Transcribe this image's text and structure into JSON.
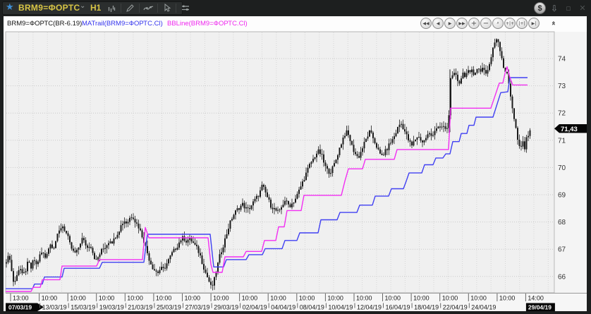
{
  "window": {
    "title": "BRM9=ФОРТС",
    "interval": "H1",
    "controls": [
      {
        "name": "currency-button",
        "glyph": "$"
      },
      {
        "name": "dock-down-button",
        "glyph": "⇩"
      },
      {
        "name": "minimize-button",
        "glyph": "▫"
      },
      {
        "name": "close-button",
        "glyph": "✕"
      }
    ]
  },
  "legend": {
    "main": {
      "label": "BRM9=ФОРТС(BR-6.19)",
      "color": "#141414"
    },
    "matrail": {
      "label": "MATrail(BRM9=ФОРТС.Cl)",
      "color": "#3434ee"
    },
    "bbline": {
      "label": "BBLine(BRM9=ФОРТС.Cl)",
      "color": "#ee26ee"
    }
  },
  "chart_toolbar": {
    "buttons": [
      {
        "name": "scroll-left-fast-button",
        "glyph": "◀◀"
      },
      {
        "name": "scroll-left-button",
        "glyph": "◀"
      },
      {
        "name": "scroll-right-button",
        "glyph": "▶"
      },
      {
        "name": "scroll-right-fast-button",
        "glyph": "▶▶"
      },
      {
        "name": "zoom-in-button",
        "glyph": "+"
      },
      {
        "name": "zoom-out-button",
        "glyph": "−"
      },
      {
        "name": "zoom-select-button",
        "glyph": "⌕"
      },
      {
        "name": "compress-bars-button",
        "glyph": "+|+"
      },
      {
        "name": "expand-bars-button",
        "glyph": "|+|"
      },
      {
        "name": "go-to-end-button",
        "glyph": "▶|"
      }
    ],
    "collapse_glyph": "«"
  },
  "chart_data": {
    "type": "candlestick",
    "symbol": "BRM9=ФОРТС",
    "series_label": "BRM9=ФОРТС(BR-6.19)",
    "interval": "H1",
    "last_price": 71.43,
    "last_price_label": "71,43",
    "y_ticks": [
      74,
      73,
      72,
      71,
      70,
      69,
      68,
      67,
      66
    ],
    "y_axis_range": [
      65.4,
      75.0
    ],
    "candle_color": "#1b1b1b",
    "plot_bg": "#f0f0f0",
    "grid_on": true,
    "x_ticks": [
      {
        "time": "13:00",
        "date": "07/03/19",
        "badge": true
      },
      {
        "time": "10:00",
        "date": "13/03/19"
      },
      {
        "time": "10:00",
        "date": "15/03/19"
      },
      {
        "time": "10:00",
        "date": "19/03/19"
      },
      {
        "time": "10:00",
        "date": "21/03/19"
      },
      {
        "time": "10:00",
        "date": "25/03/19"
      },
      {
        "time": "10:00",
        "date": "27/03/19"
      },
      {
        "time": "10:00",
        "date": "29/03/19"
      },
      {
        "time": "10:00",
        "date": "02/04/19"
      },
      {
        "time": "10:00",
        "date": "04/04/19"
      },
      {
        "time": "10:00",
        "date": "08/04/19"
      },
      {
        "time": "10:00",
        "date": "10/04/19"
      },
      {
        "time": "10:00",
        "date": "12/04/19"
      },
      {
        "time": "10:00",
        "date": "16/04/19"
      },
      {
        "time": "10:00",
        "date": "18/04/19"
      },
      {
        "time": "10:00",
        "date": "22/04/19"
      },
      {
        "time": "10:00",
        "date": "24/04/19"
      },
      {
        "time": "10:00",
        "date": ""
      },
      {
        "time": "14:00",
        "date": "29/04/19",
        "badge": true
      }
    ],
    "close_path": [
      [
        9,
        66.45
      ],
      [
        12,
        66.9
      ],
      [
        16,
        66.3
      ],
      [
        20,
        65.65
      ],
      [
        24,
        66.1
      ],
      [
        28,
        66.35
      ],
      [
        32,
        66.0
      ],
      [
        36,
        66.2
      ],
      [
        40,
        66.55
      ],
      [
        44,
        66.3
      ],
      [
        48,
        66.65
      ],
      [
        52,
        66.4
      ],
      [
        56,
        66.75
      ],
      [
        60,
        66.9
      ],
      [
        64,
        66.7
      ],
      [
        68,
        67.0
      ],
      [
        72,
        67.2
      ],
      [
        76,
        67.05
      ],
      [
        80,
        67.4
      ],
      [
        84,
        67.65
      ],
      [
        88,
        67.9
      ],
      [
        92,
        67.7
      ],
      [
        96,
        67.45
      ],
      [
        100,
        67.1
      ],
      [
        104,
        66.9
      ],
      [
        108,
        66.85
      ],
      [
        112,
        67.1
      ],
      [
        116,
        67.4
      ],
      [
        120,
        67.25
      ],
      [
        124,
        67.05
      ],
      [
        128,
        67.2
      ],
      [
        132,
        66.85
      ],
      [
        136,
        66.55
      ],
      [
        140,
        66.75
      ],
      [
        144,
        66.95
      ],
      [
        148,
        67.05
      ],
      [
        152,
        67.2
      ],
      [
        156,
        67.35
      ],
      [
        160,
        67.25
      ],
      [
        164,
        67.5
      ],
      [
        168,
        67.65
      ],
      [
        172,
        67.9
      ],
      [
        176,
        68.05
      ],
      [
        180,
        67.95
      ],
      [
        184,
        68.15
      ],
      [
        188,
        68.25
      ],
      [
        192,
        68.0
      ],
      [
        196,
        67.85
      ],
      [
        200,
        67.6
      ],
      [
        204,
        67.3
      ],
      [
        208,
        66.95
      ],
      [
        212,
        66.6
      ],
      [
        216,
        66.35
      ],
      [
        220,
        66.2
      ],
      [
        224,
        66.15
      ],
      [
        228,
        66.3
      ],
      [
        232,
        66.25
      ],
      [
        236,
        66.45
      ],
      [
        240,
        66.65
      ],
      [
        244,
        66.85
      ],
      [
        248,
        67.0
      ],
      [
        252,
        67.15
      ],
      [
        256,
        67.35
      ],
      [
        260,
        67.42
      ],
      [
        264,
        67.3
      ],
      [
        268,
        67.38
      ],
      [
        272,
        67.3
      ],
      [
        276,
        67.15
      ],
      [
        280,
        67.0
      ],
      [
        284,
        66.75
      ],
      [
        288,
        66.4
      ],
      [
        292,
        66.1
      ],
      [
        296,
        65.85
      ],
      [
        300,
        65.55
      ],
      [
        304,
        65.9
      ],
      [
        308,
        66.35
      ],
      [
        312,
        66.8
      ],
      [
        316,
        67.1
      ],
      [
        320,
        67.45
      ],
      [
        324,
        67.8
      ],
      [
        328,
        68.1
      ],
      [
        332,
        68.3
      ],
      [
        336,
        68.45
      ],
      [
        340,
        68.55
      ],
      [
        344,
        68.65
      ],
      [
        348,
        68.5
      ],
      [
        352,
        68.45
      ],
      [
        356,
        68.6
      ],
      [
        360,
        68.75
      ],
      [
        364,
        68.9
      ],
      [
        368,
        69.05
      ],
      [
        372,
        69.35
      ],
      [
        376,
        69.1
      ],
      [
        380,
        68.85
      ],
      [
        384,
        68.6
      ],
      [
        388,
        68.5
      ],
      [
        392,
        68.4
      ],
      [
        396,
        68.35
      ],
      [
        400,
        68.6
      ],
      [
        404,
        68.8
      ],
      [
        408,
        68.65
      ],
      [
        412,
        68.6
      ],
      [
        416,
        68.75
      ],
      [
        420,
        68.9
      ],
      [
        424,
        69.15
      ],
      [
        428,
        69.4
      ],
      [
        432,
        69.65
      ],
      [
        436,
        69.9
      ],
      [
        440,
        70.15
      ],
      [
        444,
        70.3
      ],
      [
        448,
        70.5
      ],
      [
        452,
        70.6
      ],
      [
        456,
        70.45
      ],
      [
        460,
        70.1
      ],
      [
        464,
        69.9
      ],
      [
        468,
        69.82
      ],
      [
        472,
        70.0
      ],
      [
        476,
        70.25
      ],
      [
        480,
        70.6
      ],
      [
        484,
        70.9
      ],
      [
        488,
        71.2
      ],
      [
        492,
        71.3
      ],
      [
        496,
        71.05
      ],
      [
        500,
        70.7
      ],
      [
        504,
        70.5
      ],
      [
        508,
        70.35
      ],
      [
        512,
        70.6
      ],
      [
        516,
        70.85
      ],
      [
        520,
        71.1
      ],
      [
        524,
        71.3
      ],
      [
        528,
        71.15
      ],
      [
        532,
        70.9
      ],
      [
        536,
        70.65
      ],
      [
        540,
        70.4
      ],
      [
        544,
        70.5
      ],
      [
        548,
        70.65
      ],
      [
        552,
        70.85
      ],
      [
        556,
        71.0
      ],
      [
        560,
        71.2
      ],
      [
        564,
        71.45
      ],
      [
        568,
        71.65
      ],
      [
        572,
        71.45
      ],
      [
        576,
        71.2
      ],
      [
        580,
        70.95
      ],
      [
        584,
        70.8
      ],
      [
        588,
        71.0
      ],
      [
        592,
        71.15
      ],
      [
        596,
        71.05
      ],
      [
        600,
        70.9
      ],
      [
        604,
        71.1
      ],
      [
        608,
        71.25
      ],
      [
        612,
        71.15
      ],
      [
        616,
        71.35
      ],
      [
        620,
        71.5
      ],
      [
        624,
        71.4
      ],
      [
        628,
        71.55
      ],
      [
        632,
        71.35
      ],
      [
        636,
        71.6
      ],
      [
        639,
        73.35
      ],
      [
        642,
        73.3
      ],
      [
        645,
        73.45
      ],
      [
        648,
        73.25
      ],
      [
        651,
        73.1
      ],
      [
        654,
        73.3
      ],
      [
        657,
        73.5
      ],
      [
        660,
        73.35
      ],
      [
        663,
        73.55
      ],
      [
        666,
        73.4
      ],
      [
        669,
        73.6
      ],
      [
        672,
        73.45
      ],
      [
        675,
        73.55
      ],
      [
        678,
        73.65
      ],
      [
        681,
        73.5
      ],
      [
        684,
        73.7
      ],
      [
        687,
        73.55
      ],
      [
        690,
        73.45
      ],
      [
        693,
        73.7
      ],
      [
        696,
        74.0
      ],
      [
        699,
        74.35
      ],
      [
        702,
        74.65
      ],
      [
        705,
        74.8
      ],
      [
        708,
        74.45
      ],
      [
        711,
        74.1
      ],
      [
        714,
        73.7
      ],
      [
        717,
        73.5
      ],
      [
        720,
        73.35
      ],
      [
        723,
        72.8
      ],
      [
        726,
        72.3
      ],
      [
        729,
        71.8
      ],
      [
        732,
        71.35
      ],
      [
        735,
        70.85
      ],
      [
        738,
        70.6
      ],
      [
        741,
        71.0
      ],
      [
        744,
        70.7
      ],
      [
        747,
        71.1
      ],
      [
        750,
        71.3
      ],
      [
        752,
        71.43
      ]
    ],
    "tall_bar": {
      "x": 638,
      "low": 71.3,
      "high": 73.6
    },
    "overlays": [
      {
        "name": "MATrail",
        "color": "#4040f2",
        "points": [
          [
            8,
            65.55
          ],
          [
            46,
            65.55
          ],
          [
            49,
            65.72
          ],
          [
            60,
            65.72
          ],
          [
            63,
            65.98
          ],
          [
            88,
            65.98
          ],
          [
            91,
            66.3
          ],
          [
            141,
            66.3
          ],
          [
            145,
            66.52
          ],
          [
            204,
            66.52
          ],
          [
            209,
            67.55
          ],
          [
            298,
            67.55
          ],
          [
            303,
            66.35
          ],
          [
            317,
            66.35
          ],
          [
            321,
            66.62
          ],
          [
            349,
            66.62
          ],
          [
            353,
            66.8
          ],
          [
            372,
            66.8
          ],
          [
            376,
            67.02
          ],
          [
            400,
            67.02
          ],
          [
            404,
            67.32
          ],
          [
            421,
            67.32
          ],
          [
            425,
            67.6
          ],
          [
            451,
            67.6
          ],
          [
            455,
            68.08
          ],
          [
            478,
            68.08
          ],
          [
            482,
            68.35
          ],
          [
            506,
            68.35
          ],
          [
            510,
            68.62
          ],
          [
            528,
            68.62
          ],
          [
            532,
            68.95
          ],
          [
            551,
            68.95
          ],
          [
            555,
            69.22
          ],
          [
            572,
            69.22
          ],
          [
            576,
            69.5
          ],
          [
            580,
            69.8
          ],
          [
            598,
            69.8
          ],
          [
            602,
            70.1
          ],
          [
            614,
            70.1
          ],
          [
            618,
            70.35
          ],
          [
            628,
            70.35
          ],
          [
            632,
            70.5
          ],
          [
            638,
            70.5
          ],
          [
            642,
            70.95
          ],
          [
            651,
            70.95
          ],
          [
            654,
            71.25
          ],
          [
            662,
            71.25
          ],
          [
            665,
            71.55
          ],
          [
            672,
            71.55
          ],
          [
            675,
            71.85
          ],
          [
            699,
            71.85
          ],
          [
            710,
            72.75
          ],
          [
            720,
            72.78
          ],
          [
            723,
            73.3
          ],
          [
            748,
            73.3
          ]
        ]
      },
      {
        "name": "BBLine",
        "color": "#f22ef2",
        "points": [
          [
            8,
            65.45
          ],
          [
            44,
            65.45
          ],
          [
            47,
            65.6
          ],
          [
            57,
            65.6
          ],
          [
            60,
            65.88
          ],
          [
            85,
            65.88
          ],
          [
            88,
            66.38
          ],
          [
            137,
            66.38
          ],
          [
            141,
            66.62
          ],
          [
            202,
            66.62
          ],
          [
            206,
            67.8
          ],
          [
            211,
            67.42
          ],
          [
            295,
            67.42
          ],
          [
            299,
            66.45
          ],
          [
            302,
            66.15
          ],
          [
            315,
            66.15
          ],
          [
            319,
            66.72
          ],
          [
            345,
            66.72
          ],
          [
            349,
            66.92
          ],
          [
            371,
            66.92
          ],
          [
            375,
            67.32
          ],
          [
            391,
            67.32
          ],
          [
            395,
            67.82
          ],
          [
            403,
            67.82
          ],
          [
            407,
            68.42
          ],
          [
            427,
            68.42
          ],
          [
            431,
            68.98
          ],
          [
            484,
            68.98
          ],
          [
            489,
            69.5
          ],
          [
            494,
            69.95
          ],
          [
            514,
            69.95
          ],
          [
            518,
            70.3
          ],
          [
            559,
            70.3
          ],
          [
            563,
            70.66
          ],
          [
            636,
            70.66
          ],
          [
            639,
            72.18
          ],
          [
            696,
            72.18
          ],
          [
            708,
            73.1
          ],
          [
            713,
            73.1
          ],
          [
            716,
            73.45
          ],
          [
            719,
            73.7
          ],
          [
            723,
            73.3
          ],
          [
            727,
            73.03
          ],
          [
            748,
            73.03
          ]
        ]
      }
    ]
  }
}
